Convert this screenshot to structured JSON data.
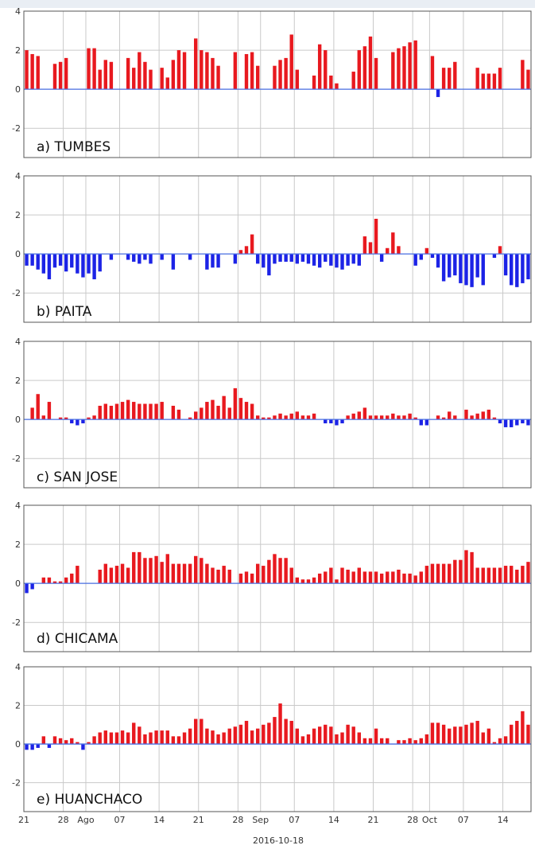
{
  "colors": {
    "positive": "#e8191f",
    "negative": "#1c23e6",
    "zero_line": "#4a6fe3",
    "frame": "#555555",
    "grid": "#c9c9c9"
  },
  "x_axis": {
    "tick_labels": [
      "21",
      "28",
      "Ago",
      "07",
      "14",
      "21",
      "28",
      "Sep",
      "07",
      "14",
      "21",
      "28",
      "Oct",
      "07",
      "14"
    ],
    "tick_days": [
      0,
      7,
      11,
      17,
      24,
      31,
      38,
      42,
      48,
      55,
      62,
      69,
      72,
      78,
      85
    ],
    "xlabel": "2016-10-18"
  },
  "chart_data": [
    {
      "type": "bar",
      "title": "a) TUMBES",
      "ylim": [
        -3.5,
        4
      ],
      "yticks": [
        -2,
        0,
        2,
        4
      ],
      "grid": true,
      "x_start": "2016-07-21",
      "values": [
        2.0,
        1.8,
        1.7,
        0,
        0,
        1.3,
        1.4,
        1.6,
        0,
        0,
        0,
        2.1,
        2.1,
        1.0,
        1.5,
        1.4,
        0,
        0,
        1.6,
        1.1,
        1.9,
        1.4,
        1.0,
        0,
        1.1,
        0.6,
        1.5,
        2.0,
        1.9,
        0,
        2.6,
        2.0,
        1.9,
        1.6,
        1.2,
        0,
        0,
        1.9,
        0,
        1.8,
        1.9,
        1.2,
        0,
        0,
        1.2,
        1.5,
        1.6,
        2.8,
        1.0,
        0,
        0,
        0.7,
        2.3,
        2.0,
        0.7,
        0.3,
        0,
        0,
        0.9,
        2.0,
        2.2,
        2.7,
        1.6,
        0,
        0,
        1.9,
        2.1,
        2.2,
        2.4,
        2.5,
        0,
        0,
        1.7,
        -0.4,
        1.1,
        1.1,
        1.4,
        0,
        0,
        0,
        1.1,
        0.8,
        0.8,
        0.8,
        1.1,
        0,
        0,
        0,
        1.5,
        1.0
      ]
    },
    {
      "type": "bar",
      "title": "b) PAITA",
      "ylim": [
        -3.5,
        4
      ],
      "yticks": [
        -2,
        0,
        2,
        4
      ],
      "grid": true,
      "x_start": "2016-07-21",
      "values": [
        -0.6,
        -0.6,
        -0.8,
        -1.0,
        -1.3,
        -0.7,
        -0.6,
        -0.9,
        -0.7,
        -1.0,
        -1.2,
        -1.0,
        -1.3,
        -0.9,
        0,
        -0.3,
        0,
        0,
        -0.3,
        -0.4,
        -0.5,
        -0.3,
        -0.5,
        0,
        -0.3,
        0,
        -0.8,
        0,
        0,
        -0.3,
        0,
        0,
        -0.8,
        -0.7,
        -0.7,
        0,
        0,
        -0.5,
        0.2,
        0.4,
        1.0,
        -0.5,
        -0.7,
        -1.1,
        -0.5,
        -0.4,
        -0.4,
        -0.4,
        -0.5,
        -0.4,
        -0.5,
        -0.6,
        -0.7,
        -0.4,
        -0.6,
        -0.7,
        -0.8,
        -0.6,
        -0.5,
        -0.6,
        0.9,
        0.6,
        1.8,
        -0.4,
        0.3,
        1.1,
        0.4,
        0,
        0,
        -0.6,
        -0.3,
        0.3,
        -0.2,
        -0.7,
        -1.4,
        -1.2,
        -1.1,
        -1.5,
        -1.6,
        -1.7,
        -1.2,
        -1.6,
        0,
        -0.2,
        0.4,
        -1.1,
        -1.6,
        -1.7,
        -1.5,
        -1.3
      ]
    },
    {
      "type": "bar",
      "title": "c) SAN JOSE",
      "ylim": [
        -3.5,
        4
      ],
      "yticks": [
        -2,
        0,
        2,
        4
      ],
      "grid": true,
      "x_start": "2016-07-21",
      "values": [
        0,
        0.6,
        1.3,
        0.2,
        0.9,
        0,
        0.1,
        0.1,
        -0.2,
        -0.3,
        -0.2,
        0.1,
        0.2,
        0.7,
        0.8,
        0.7,
        0.8,
        0.9,
        1.0,
        0.9,
        0.8,
        0.8,
        0.8,
        0.8,
        0.9,
        0,
        0.7,
        0.5,
        0,
        0.1,
        0.4,
        0.6,
        0.9,
        1.0,
        0.7,
        1.2,
        0.6,
        1.6,
        1.1,
        0.9,
        0.8,
        0.2,
        0.1,
        0.1,
        0.2,
        0.3,
        0.2,
        0.3,
        0.4,
        0.2,
        0.2,
        0.3,
        0,
        -0.2,
        -0.2,
        -0.3,
        -0.2,
        0.2,
        0.3,
        0.4,
        0.6,
        0.2,
        0.2,
        0.2,
        0.2,
        0.3,
        0.2,
        0.2,
        0.3,
        0.1,
        -0.3,
        -0.3,
        0,
        0.2,
        0.1,
        0.4,
        0.2,
        0,
        0.5,
        0.2,
        0.3,
        0.4,
        0.5,
        0.1,
        -0.2,
        -0.4,
        -0.4,
        -0.3,
        -0.2,
        -0.3
      ]
    },
    {
      "type": "bar",
      "title": "d) CHICAMA",
      "ylim": [
        -3.5,
        4
      ],
      "yticks": [
        -2,
        0,
        2,
        4
      ],
      "grid": true,
      "x_start": "2016-07-21",
      "values": [
        -0.5,
        -0.3,
        0,
        0.3,
        0.3,
        0.1,
        0.1,
        0.3,
        0.5,
        0.9,
        0,
        0,
        0,
        0.7,
        1.0,
        0.8,
        0.9,
        1.0,
        0.8,
        1.6,
        1.6,
        1.3,
        1.3,
        1.4,
        1.1,
        1.5,
        1.0,
        1.0,
        1.0,
        1.0,
        1.4,
        1.3,
        1.0,
        0.8,
        0.7,
        0.9,
        0.7,
        0,
        0.5,
        0.6,
        0.5,
        1.0,
        0.9,
        1.2,
        1.5,
        1.3,
        1.3,
        0.8,
        0.3,
        0.2,
        0.2,
        0.3,
        0.5,
        0.6,
        0.8,
        0.2,
        0.8,
        0.7,
        0.6,
        0.8,
        0.6,
        0.6,
        0.6,
        0.5,
        0.6,
        0.6,
        0.7,
        0.5,
        0.5,
        0.4,
        0.6,
        0.9,
        1.0,
        1.0,
        1.0,
        1.0,
        1.2,
        1.2,
        1.7,
        1.6,
        0.8,
        0.8,
        0.8,
        0.8,
        0.8,
        0.9,
        0.9,
        0.7,
        0.9,
        1.1
      ]
    },
    {
      "type": "bar",
      "title": "e) HUANCHACO",
      "ylim": [
        -3.5,
        4
      ],
      "yticks": [
        -2,
        0,
        2,
        4
      ],
      "grid": true,
      "x_start": "2016-07-21",
      "values": [
        -0.3,
        -0.3,
        -0.2,
        0.4,
        -0.2,
        0.4,
        0.3,
        0.2,
        0.3,
        0.1,
        -0.3,
        0.1,
        0.4,
        0.6,
        0.7,
        0.6,
        0.6,
        0.7,
        0.6,
        1.1,
        0.9,
        0.5,
        0.6,
        0.7,
        0.7,
        0.7,
        0.4,
        0.4,
        0.6,
        0.8,
        1.3,
        1.3,
        0.8,
        0.7,
        0.5,
        0.6,
        0.8,
        0.9,
        1.0,
        1.2,
        0.7,
        0.8,
        1.0,
        1.1,
        1.4,
        2.1,
        1.3,
        1.2,
        0.8,
        0.4,
        0.5,
        0.8,
        0.9,
        1.0,
        0.9,
        0.5,
        0.6,
        1.0,
        0.9,
        0.6,
        0.3,
        0.3,
        0.8,
        0.3,
        0.3,
        0,
        0.2,
        0.2,
        0.3,
        0.2,
        0.3,
        0.5,
        1.1,
        1.1,
        1.0,
        0.8,
        0.9,
        0.9,
        1.0,
        1.1,
        1.2,
        0.6,
        0.8,
        0.1,
        0.3,
        0.4,
        1.0,
        1.2,
        1.7,
        1.0
      ]
    }
  ]
}
